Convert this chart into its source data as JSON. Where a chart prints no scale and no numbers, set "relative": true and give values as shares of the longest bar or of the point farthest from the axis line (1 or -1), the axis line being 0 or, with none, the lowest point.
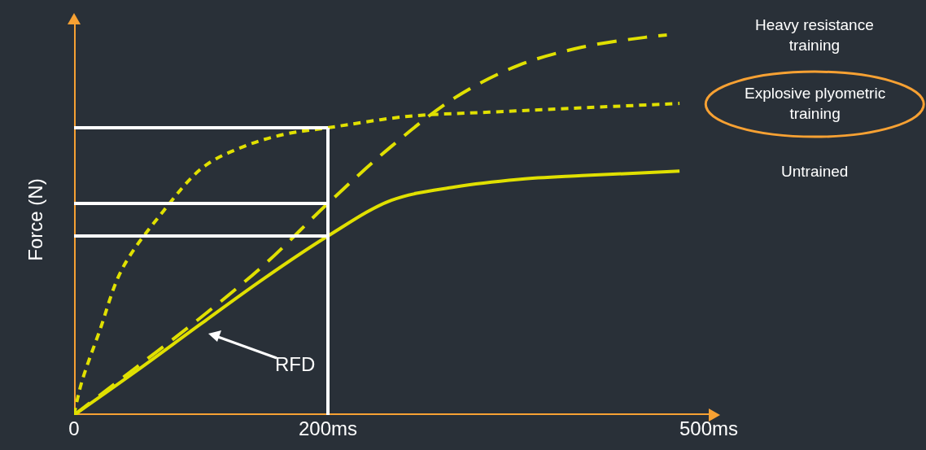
{
  "chart_data": {
    "type": "line",
    "relative": true,
    "ylabel": "Force (N)",
    "xlim": [
      0,
      500
    ],
    "xticks": [
      0,
      {
        "value": 200,
        "label": "200ms"
      },
      {
        "value": 500,
        "label": "500ms"
      }
    ],
    "tick_labels": "x",
    "grid": false,
    "legend": false,
    "series": [
      {
        "name": "Heavy resistance training",
        "color": "#e0e000",
        "line_style": "dashed",
        "x": [
          0,
          50,
          100,
          150,
          200,
          250,
          300,
          350,
          400,
          450,
          467
        ],
        "values": [
          0,
          0.128,
          0.257,
          0.396,
          0.557,
          0.707,
          0.835,
          0.92,
          0.968,
          0.994,
          1
        ]
      },
      {
        "name": "Explosive plyometric training",
        "color": "#e0e000",
        "line_style": "dotted",
        "x": [
          0,
          6,
          20,
          38,
          70,
          102,
          134,
          166,
          200,
          263,
          327,
          391,
          477
        ],
        "values": [
          0,
          0.086,
          0.22,
          0.385,
          0.535,
          0.653,
          0.707,
          0.739,
          0.756,
          0.786,
          0.797,
          0.807,
          0.82
        ]
      },
      {
        "name": "Untrained",
        "color": "#e0e000",
        "line_style": "solid",
        "x": [
          0,
          50,
          100,
          150,
          200,
          250,
          300,
          350,
          400,
          477
        ],
        "values": [
          0,
          0.118,
          0.24,
          0.36,
          0.471,
          0.565,
          0.6,
          0.62,
          0.63,
          0.642
        ]
      },
      {
        "color": "#ffffff",
        "line_style": "solid",
        "x": [
          0,
          200
        ],
        "values": [
          0.756,
          0.756
        ]
      },
      {
        "color": "#ffffff",
        "line_style": "solid",
        "x": [
          0,
          200
        ],
        "values": [
          0.557,
          0.557
        ]
      },
      {
        "color": "#ffffff",
        "line_style": "solid",
        "x": [
          0,
          200
        ],
        "values": [
          0.471,
          0.471
        ]
      },
      {
        "color": "#ffffff",
        "line_style": "solid",
        "x": [
          200,
          200
        ],
        "values": [
          0,
          0.756
        ]
      }
    ],
    "annotations": [
      "RFD"
    ]
  }
}
